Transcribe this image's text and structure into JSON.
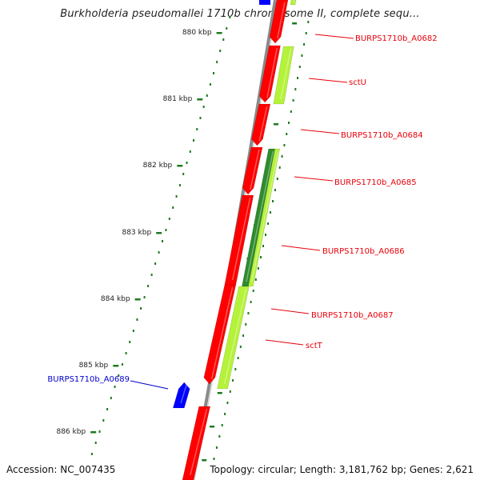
{
  "title": "Burkholderia pseudomallei 1710b chromosome II, complete sequ...",
  "ruler": {
    "tick_labels": [
      "880 kbp",
      "881 kbp",
      "882 kbp",
      "883 kbp",
      "884 kbp",
      "885 kbp",
      "886 kbp"
    ]
  },
  "features": [
    {
      "name": "BURPS1710b_A0682",
      "color": "#e8000a"
    },
    {
      "name": "sctU",
      "color": "#e8000a"
    },
    {
      "name": "BURPS1710b_A0684",
      "color": "#e8000a"
    },
    {
      "name": "BURPS1710b_A0685",
      "color": "#e8000a"
    },
    {
      "name": "BURPS1710b_A0686",
      "color": "#e8000a"
    },
    {
      "name": "BURPS1710b_A0687",
      "color": "#e8000a"
    },
    {
      "name": "sctT",
      "color": "#e8000a"
    },
    {
      "name": "BURPS1710b_A0689",
      "color": "#0000cc"
    }
  ],
  "colors": {
    "cds_forward": "#ff0000",
    "cds_reverse": "#b5f23a",
    "gc_skew": "#2e8b2e",
    "gene_blue": "#0000ff",
    "backbone": "#888888",
    "ruler_ticks": "#1f7a1f"
  },
  "footer": {
    "accession": "Accession: NC_007435",
    "summary": "Topology: circular; Length: 3,181,762 bp; Genes: 2,621"
  }
}
